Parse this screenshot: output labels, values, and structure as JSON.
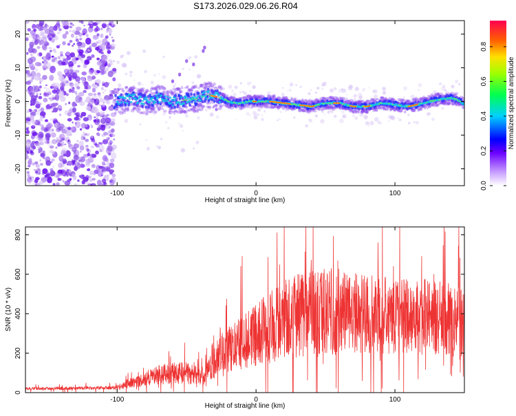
{
  "title": "S173.2026.029.06.26.R04",
  "colors": {
    "snr_line": "#ee3333",
    "axes": "#000000",
    "background": "#ffffff"
  },
  "chart_data": [
    {
      "type": "heatmap",
      "xlabel": "Height of straight line (km)",
      "ylabel": "Frequency (Hz)",
      "xlim": [
        -166,
        150
      ],
      "ylim": [
        -25,
        24
      ],
      "xticks": [
        -100,
        0,
        100
      ],
      "xtick_labels": [
        "-100",
        "0",
        "100"
      ],
      "yticks": [
        -20,
        -10,
        0,
        10,
        20
      ],
      "ytick_labels": [
        "-20",
        "-10",
        "0",
        "10",
        "20"
      ],
      "colorbar": {
        "label": "Normalized spectral amplitude",
        "range": [
          0,
          0.95
        ],
        "ticks": [
          0.0,
          0.2,
          0.4,
          0.6,
          0.8
        ],
        "tick_labels": [
          "0.0",
          "0.2",
          "0.4",
          "0.6",
          "0.8"
        ]
      },
      "ridge": {
        "x": [
          -100,
          -90,
          -80,
          -70,
          -60,
          -50,
          -40,
          -35,
          -30,
          -25,
          -20,
          -15,
          -10,
          -5,
          0,
          10,
          20,
          30,
          40,
          50,
          60,
          70,
          80,
          90,
          100,
          110,
          120,
          130,
          140,
          145,
          150
        ],
        "freq": [
          0,
          1,
          0,
          1,
          0,
          0.5,
          1,
          2,
          1.5,
          1,
          0,
          -0.5,
          -0.5,
          0,
          0,
          0,
          -0.5,
          -1,
          -1.5,
          -0.5,
          -0.5,
          -1.5,
          -1.5,
          -0.5,
          -1,
          -1.5,
          -0.5,
          0.5,
          1,
          0.5,
          -1
        ]
      }
    },
    {
      "type": "line",
      "xlabel": "Height of straight line (km)",
      "ylabel": "SNR (10 * v/v)",
      "xlim": [
        -166,
        150
      ],
      "ylim": [
        0,
        840
      ],
      "xticks": [
        -100,
        0,
        100
      ],
      "xtick_labels": [
        "-100",
        "0",
        "100"
      ],
      "yticks": [
        0,
        200,
        400,
        600,
        800
      ],
      "ytick_labels": [
        "0",
        "200",
        "400",
        "600",
        "800"
      ],
      "series": [
        {
          "name": "SNR",
          "envelope_x": [
            -166,
            -100,
            -90,
            -80,
            -70,
            -60,
            -50,
            -40,
            -35,
            -30,
            -25,
            -20,
            -10,
            0,
            10,
            20,
            30,
            40,
            50,
            60,
            70,
            80,
            90,
            100,
            110,
            120,
            130,
            140,
            150
          ],
          "envelope_y": [
            20,
            25,
            50,
            70,
            90,
            100,
            100,
            80,
            100,
            150,
            200,
            220,
            250,
            290,
            330,
            370,
            390,
            400,
            405,
            410,
            405,
            400,
            390,
            390,
            390,
            385,
            380,
            370,
            360
          ],
          "spikes_x": [
            -11,
            146,
            128,
            99
          ],
          "spikes_y": [
            640,
            840,
            600,
            640
          ]
        }
      ]
    }
  ]
}
